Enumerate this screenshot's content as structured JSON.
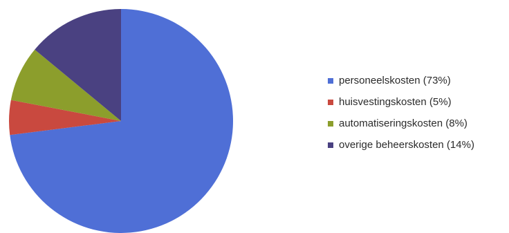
{
  "chart_data": {
    "type": "pie",
    "title": "",
    "categories": [
      "personeelskosten (73%)",
      "huisvestingskosten (5%)",
      "automatiseringskosten (8%)",
      "overige beheerskosten (14%)"
    ],
    "values": [
      73,
      5,
      8,
      14
    ],
    "colors": [
      "#4f6fd6",
      "#c9493f",
      "#8c9e2c",
      "#4a4181"
    ],
    "legend_position": "right"
  }
}
